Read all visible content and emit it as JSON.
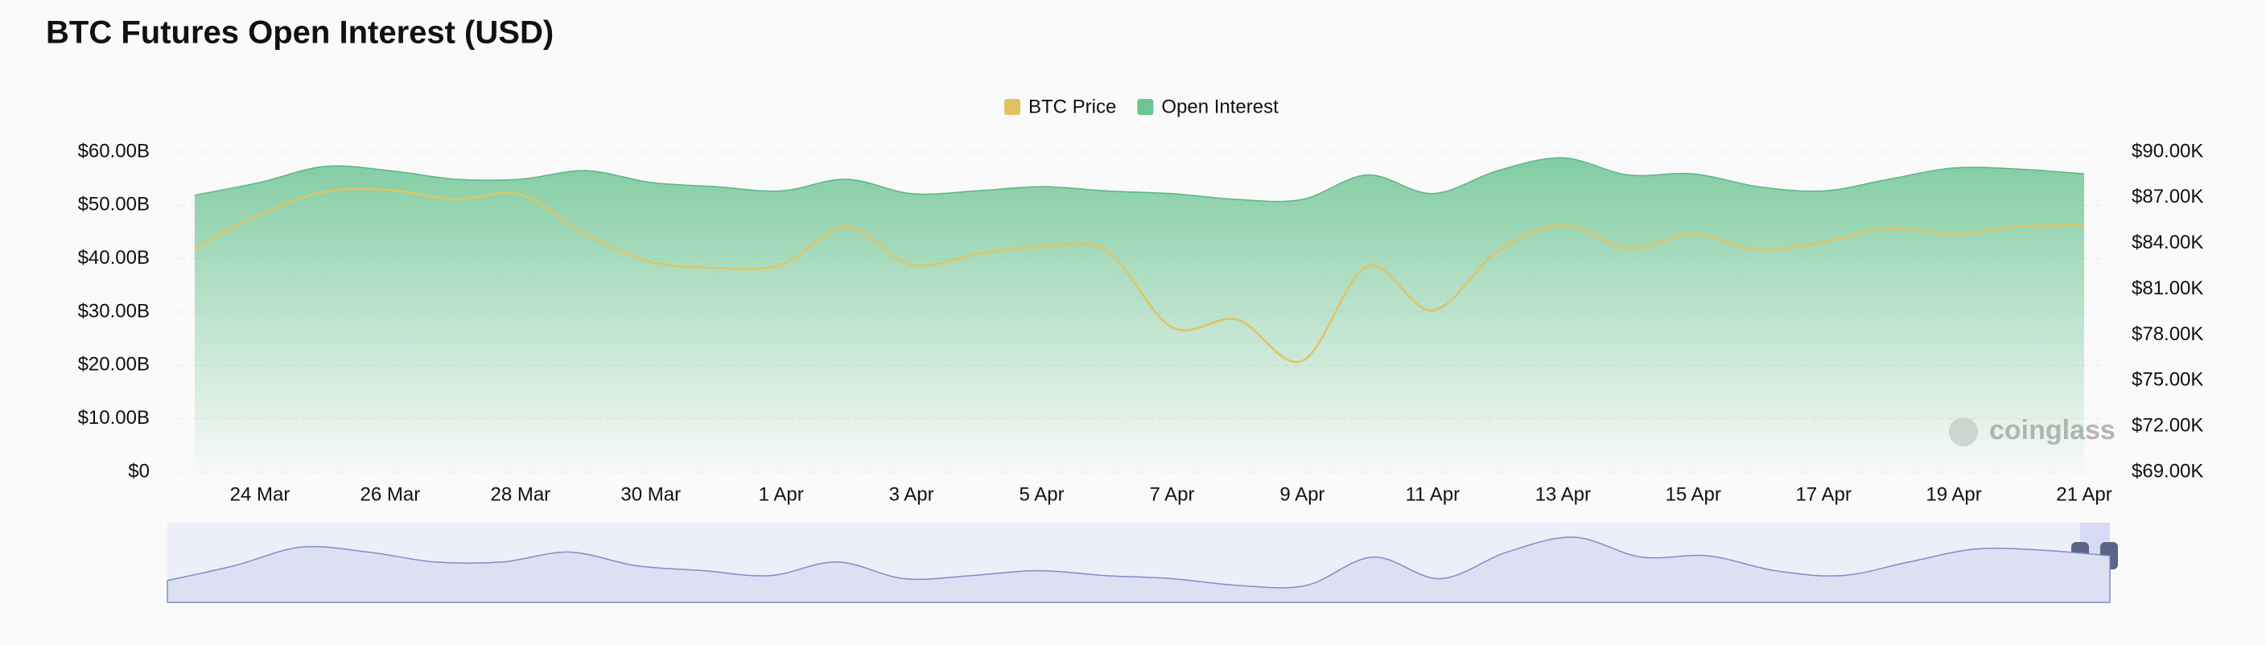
{
  "chart_data": {
    "type": "line",
    "title": "BTC Futures Open Interest (USD)",
    "watermark": "coinglass",
    "legend_position": "top",
    "grid": true,
    "categories": [
      null,
      "24 Mar",
      null,
      "26 Mar",
      null,
      "28 Mar",
      null,
      "30 Mar",
      null,
      "1 Apr",
      null,
      "3 Apr",
      null,
      "5 Apr",
      null,
      "7 Apr",
      null,
      "9 Apr",
      null,
      "11 Apr",
      null,
      "13 Apr",
      null,
      "15 Apr",
      null,
      "17 Apr",
      null,
      "19 Apr",
      null,
      "21 Apr"
    ],
    "series": [
      {
        "name": "BTC Price",
        "color": "#e2c363",
        "axis": "y2",
        "values": [
          83700,
          85900,
          87400,
          87500,
          86900,
          87200,
          84600,
          82800,
          82400,
          82600,
          85100,
          82600,
          83300,
          83800,
          83500,
          78500,
          79000,
          76300,
          82500,
          79600,
          83500,
          85200,
          83700,
          84600,
          83600,
          84100,
          85000,
          84600,
          85100,
          85200
        ]
      },
      {
        "name": "Open Interest",
        "color": "#6cc592",
        "fill": "area",
        "values": [
          51.9,
          54.3,
          57.3,
          56.5,
          54.9,
          54.9,
          56.5,
          54.3,
          53.5,
          52.7,
          54.9,
          52.2,
          52.7,
          53.5,
          52.7,
          52.2,
          51.1,
          51.1,
          55.7,
          52.2,
          56.5,
          58.9,
          55.7,
          55.9,
          53.5,
          52.7,
          54.9,
          57.0,
          56.8,
          55.9
        ]
      }
    ],
    "ylim": [
      0,
      60
    ],
    "yticks": [
      {
        "value": 0,
        "label": "$0"
      },
      {
        "value": 10,
        "label": "$10.00B"
      },
      {
        "value": 20,
        "label": "$20.00B"
      },
      {
        "value": 30,
        "label": "$30.00B"
      },
      {
        "value": 40,
        "label": "$40.00B"
      },
      {
        "value": 50,
        "label": "$50.00B"
      },
      {
        "value": 60,
        "label": "$60.00B"
      }
    ],
    "y2lim": [
      69000,
      90000
    ],
    "y2ticks": [
      {
        "value": 69000,
        "label": "$69.00K"
      },
      {
        "value": 72000,
        "label": "$72.00K"
      },
      {
        "value": 75000,
        "label": "$75.00K"
      },
      {
        "value": 78000,
        "label": "$78.00K"
      },
      {
        "value": 81000,
        "label": "$81.00K"
      },
      {
        "value": 84000,
        "label": "$84.00K"
      },
      {
        "value": 87000,
        "label": "$87.00K"
      },
      {
        "value": 90000,
        "label": "$90.00K"
      }
    ]
  }
}
